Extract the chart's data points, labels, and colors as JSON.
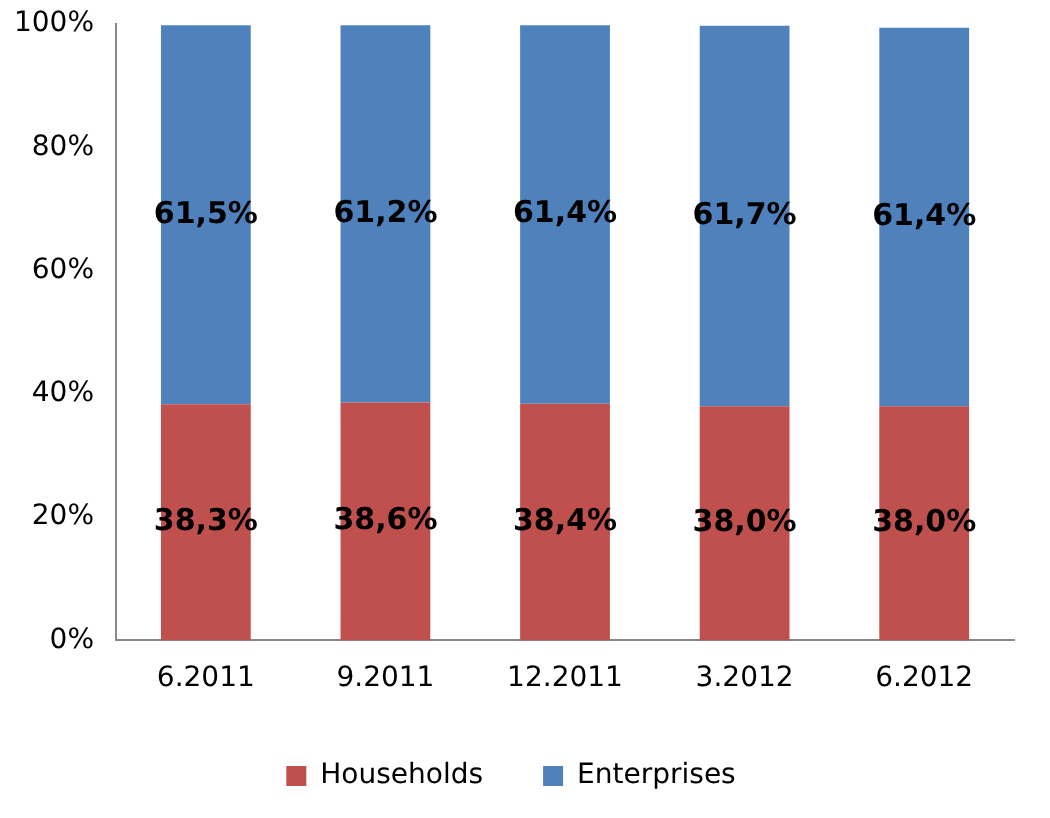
{
  "chart_data": {
    "type": "bar",
    "stacked": true,
    "categories": [
      "6.2011",
      "9.2011",
      "12.2011",
      "3.2012",
      "6.2012"
    ],
    "series": [
      {
        "name": "Households",
        "color": "#c0504d",
        "values": [
          38.3,
          38.6,
          38.4,
          38.0,
          38.0
        ],
        "value_labels": [
          "38,3%",
          "38,6%",
          "38,4%",
          "38,0%",
          "38,0%"
        ]
      },
      {
        "name": "Enterprises",
        "color": "#4f81bd",
        "values": [
          61.5,
          61.2,
          61.4,
          61.7,
          61.4
        ],
        "value_labels": [
          "61,5%",
          "61,2%",
          "61,4%",
          "61,7%",
          "61,4%"
        ]
      }
    ],
    "ylim": [
      0,
      100
    ],
    "yticks": [
      {
        "value": 0,
        "label": "0%"
      },
      {
        "value": 20,
        "label": "20%"
      },
      {
        "value": 40,
        "label": "40%"
      },
      {
        "value": 60,
        "label": "60%"
      },
      {
        "value": 80,
        "label": "80%"
      },
      {
        "value": 100,
        "label": "100%"
      }
    ],
    "grid": false,
    "legend": "bottom"
  }
}
